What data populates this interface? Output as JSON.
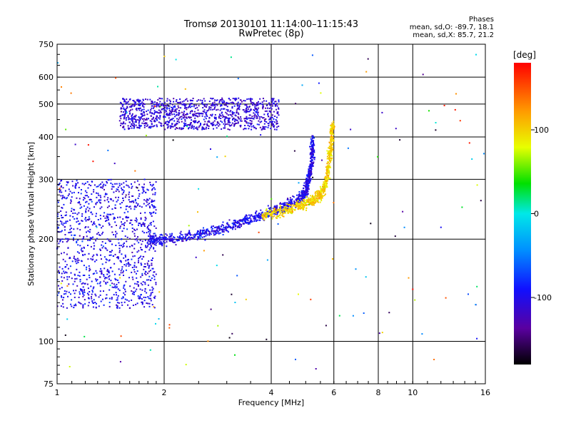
{
  "header": {
    "title": "Tromsø 20130101 11:14:00–11:15:43",
    "subtitle": "RwPretec (8p)"
  },
  "stats": {
    "heading": "Phases",
    "line_o": "mean, sd,O: -89.7, 18.1",
    "line_x": "mean, sd,X: 85.7, 21.2"
  },
  "chart_data": {
    "type": "scatter",
    "xlabel": "Frequency [MHz]",
    "ylabel": "Stationary phase Virtual Height [km]",
    "x_scale": "log",
    "y_scale": "log",
    "xlim": [
      1,
      16
    ],
    "ylim": [
      75,
      750
    ],
    "xticks": [
      "1",
      "2",
      "4",
      "6",
      "8",
      "10",
      "16"
    ],
    "xtick_values": [
      1,
      2,
      4,
      6,
      8,
      10,
      16
    ],
    "yticks": [
      "75",
      "100",
      "200",
      "300",
      "400",
      "500",
      "600",
      "750"
    ],
    "ytick_values": [
      75,
      100,
      200,
      300,
      400,
      500,
      600,
      750
    ],
    "grid": true,
    "colorbar": {
      "label": "[deg]",
      "range": [
        -180,
        180
      ],
      "ticks": [
        "100",
        "0",
        "-100"
      ],
      "tick_values": [
        100,
        0,
        -100
      ]
    },
    "point_value": "phase [deg]",
    "traces": [
      {
        "name": "E/F1 lower cluster",
        "x_range": [
          1.0,
          1.9
        ],
        "y_range": [
          125,
          300
        ],
        "phase_mean": -100
      },
      {
        "name": "F trace O",
        "points": [
          [
            1.8,
            198
          ],
          [
            2.0,
            200
          ],
          [
            2.4,
            204
          ],
          [
            2.8,
            212
          ],
          [
            3.2,
            222
          ],
          [
            3.6,
            232
          ],
          [
            4.0,
            240
          ],
          [
            4.4,
            250
          ],
          [
            4.8,
            262
          ],
          [
            5.0,
            275
          ],
          [
            5.1,
            300
          ],
          [
            5.2,
            340
          ],
          [
            5.25,
            400
          ]
        ],
        "phase_mean": -100
      },
      {
        "name": "F trace X",
        "points": [
          [
            3.8,
            235
          ],
          [
            4.3,
            242
          ],
          [
            4.8,
            250
          ],
          [
            5.2,
            260
          ],
          [
            5.5,
            270
          ],
          [
            5.7,
            290
          ],
          [
            5.8,
            330
          ],
          [
            5.9,
            380
          ],
          [
            5.95,
            440
          ]
        ],
        "phase_mean": 100
      },
      {
        "name": "multi-hop echo",
        "x_range": [
          1.5,
          4.2
        ],
        "y_range": [
          420,
          520
        ],
        "phase_mean": -110
      }
    ]
  }
}
